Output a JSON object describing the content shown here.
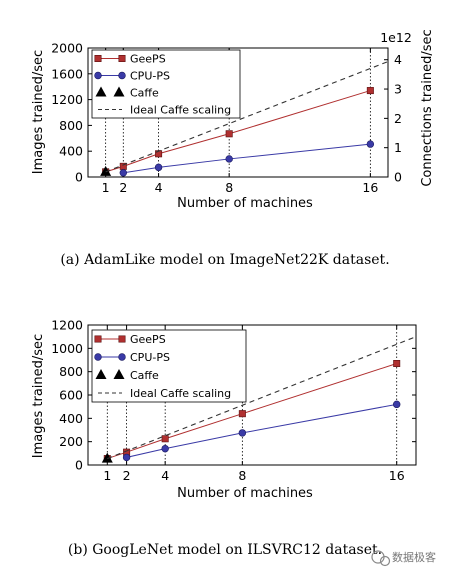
{
  "figure": {
    "watermark": "数据极客"
  },
  "chart_data": [
    {
      "type": "line",
      "caption": "(a) AdamLike model on ImageNet22K dataset.",
      "xlabel": "Number of machines",
      "ylabel": "Images trained/sec",
      "y2label": "Connections trained/sec",
      "y2_offset_text": "1e12",
      "x_ticks": [
        1,
        2,
        4,
        8,
        16
      ],
      "y_ticks": [
        0,
        400,
        800,
        1200,
        1600,
        2000
      ],
      "y2_ticks": [
        0,
        1,
        2,
        3,
        4
      ],
      "xlim": [
        0,
        17
      ],
      "ylim": [
        0,
        2000
      ],
      "y2lim": [
        0,
        4.4
      ],
      "grid": "x-only dotted",
      "legend_position": "top-left",
      "series": [
        {
          "name": "GeePS",
          "x": [
            1,
            2,
            4,
            8,
            16
          ],
          "values": [
            80,
            165,
            360,
            670,
            1340
          ],
          "color": "#b03030",
          "marker": "square"
        },
        {
          "name": "CPU-PS",
          "x": [
            2,
            4,
            8,
            16
          ],
          "values": [
            65,
            150,
            280,
            510
          ],
          "color": "#3a3aa6",
          "marker": "circle"
        },
        {
          "name": "Caffe",
          "x": [
            1
          ],
          "values": [
            80
          ],
          "color": "#000000",
          "marker": "triangle"
        },
        {
          "name": "Ideal Caffe scaling",
          "x": [
            1,
            17
          ],
          "values": [
            80,
            1790
          ],
          "color": "#333333",
          "marker": "none"
        }
      ]
    },
    {
      "type": "line",
      "caption": "(b) GoogLeNet model on ILSVRC12 dataset.",
      "xlabel": "Number of machines",
      "ylabel": "Images trained/sec",
      "x_ticks": [
        1,
        2,
        4,
        8,
        16
      ],
      "y_ticks": [
        0,
        200,
        400,
        600,
        800,
        1000,
        1200
      ],
      "xlim": [
        0,
        17
      ],
      "ylim": [
        0,
        1200
      ],
      "grid": "x-only dotted",
      "legend_position": "top-left",
      "series": [
        {
          "name": "GeePS",
          "x": [
            1,
            2,
            4,
            8,
            16
          ],
          "values": [
            55,
            110,
            225,
            440,
            870
          ],
          "color": "#b03030",
          "marker": "square"
        },
        {
          "name": "CPU-PS",
          "x": [
            2,
            4,
            8,
            16
          ],
          "values": [
            65,
            140,
            275,
            520
          ],
          "color": "#3a3aa6",
          "marker": "circle"
        },
        {
          "name": "Caffe",
          "x": [
            1
          ],
          "values": [
            55
          ],
          "color": "#000000",
          "marker": "triangle"
        },
        {
          "name": "Ideal Caffe scaling",
          "x": [
            1,
            17
          ],
          "values": [
            55,
            1100
          ],
          "color": "#333333",
          "marker": "none"
        }
      ]
    }
  ]
}
